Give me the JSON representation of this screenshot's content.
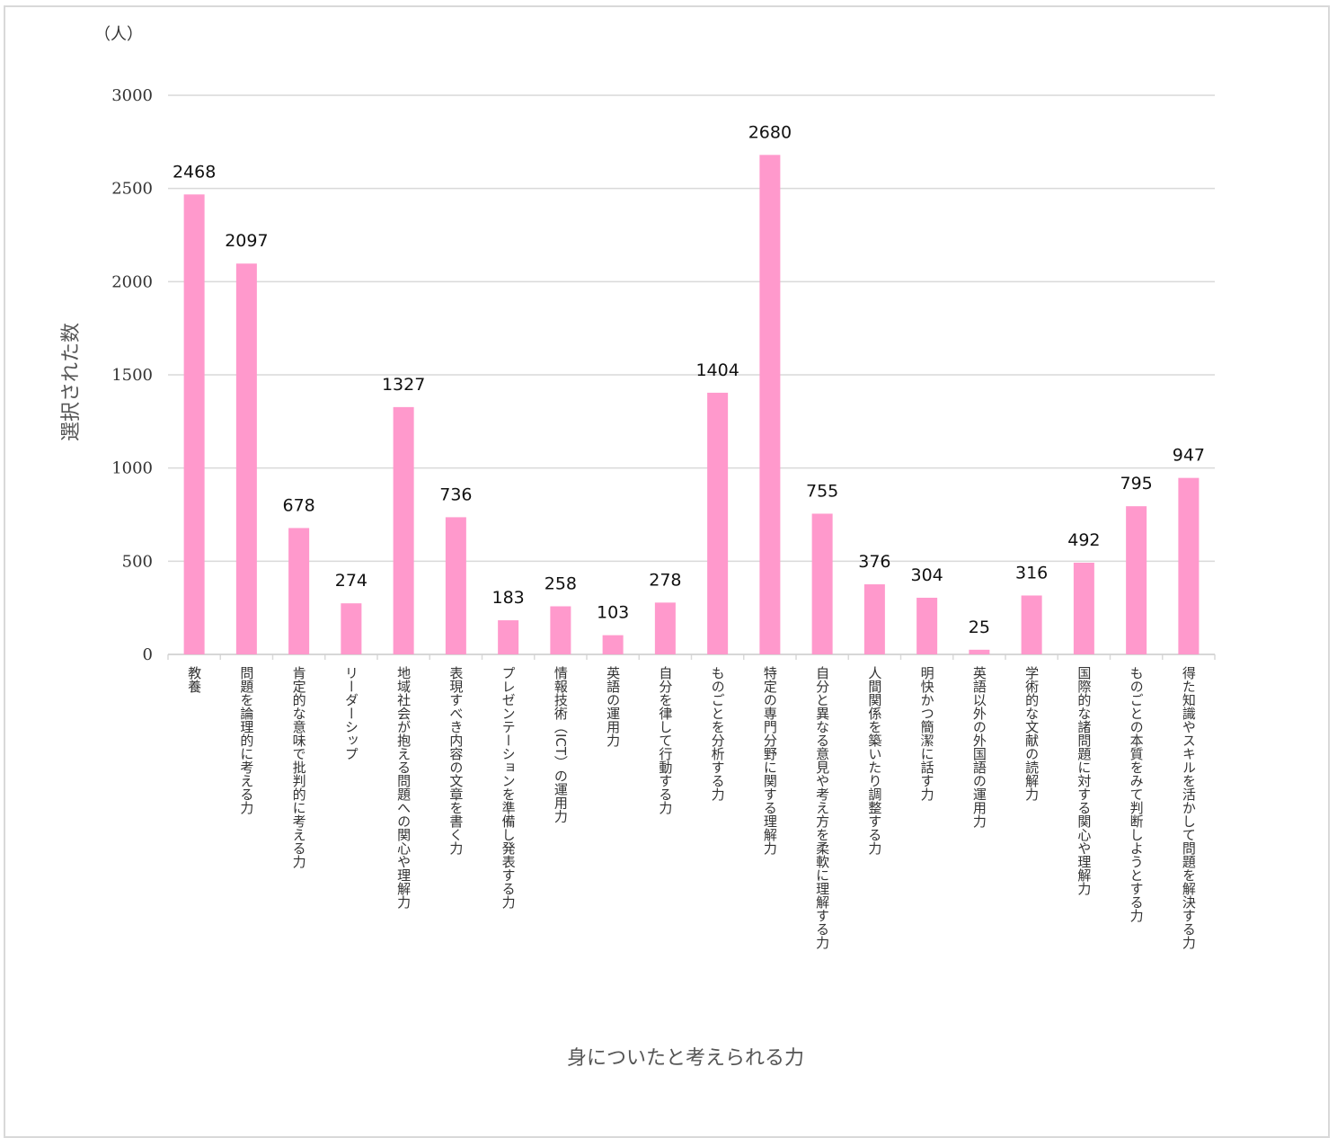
{
  "chart_data": {
    "type": "bar",
    "unit_label": "（人）",
    "xlabel": "身についたと考えられる力",
    "ylabel": "選択された数",
    "ylim": [
      0,
      3000
    ],
    "yticks": [
      0,
      500,
      1000,
      1500,
      2000,
      2500,
      3000
    ],
    "grid": true,
    "legend": "none",
    "bar_color": "#ff99cc",
    "categories": [
      "教養",
      "問題を論理的に考える力",
      "肯定的な意味で批判的に考える力",
      "リーダーシップ",
      "地域社会が抱える問題への関心や理解力",
      "表現すべき内容の文章を書く力",
      "プレゼンテーションを準備し発表する力",
      "情報技術（ICT）の運用力",
      "英語の運用力",
      "自分を律して行動する力",
      "ものごとを分析する力",
      "特定の専門分野に関する理解力",
      "自分と異なる意見や考え方を柔軟に理解する力",
      "人間関係を築いたり調整する力",
      "明快かつ簡潔に話す力",
      "英語以外の外国語の運用力",
      "学術的な文献の読解力",
      "国際的な諸問題に対する関心や理解力",
      "ものごとの本質をみて判断しようとする力",
      "得た知識やスキルを活かして問題を解決する力"
    ],
    "values": [
      2468,
      2097,
      678,
      274,
      1327,
      736,
      183,
      258,
      103,
      278,
      1404,
      2680,
      755,
      376,
      304,
      25,
      316,
      492,
      795,
      947
    ]
  }
}
